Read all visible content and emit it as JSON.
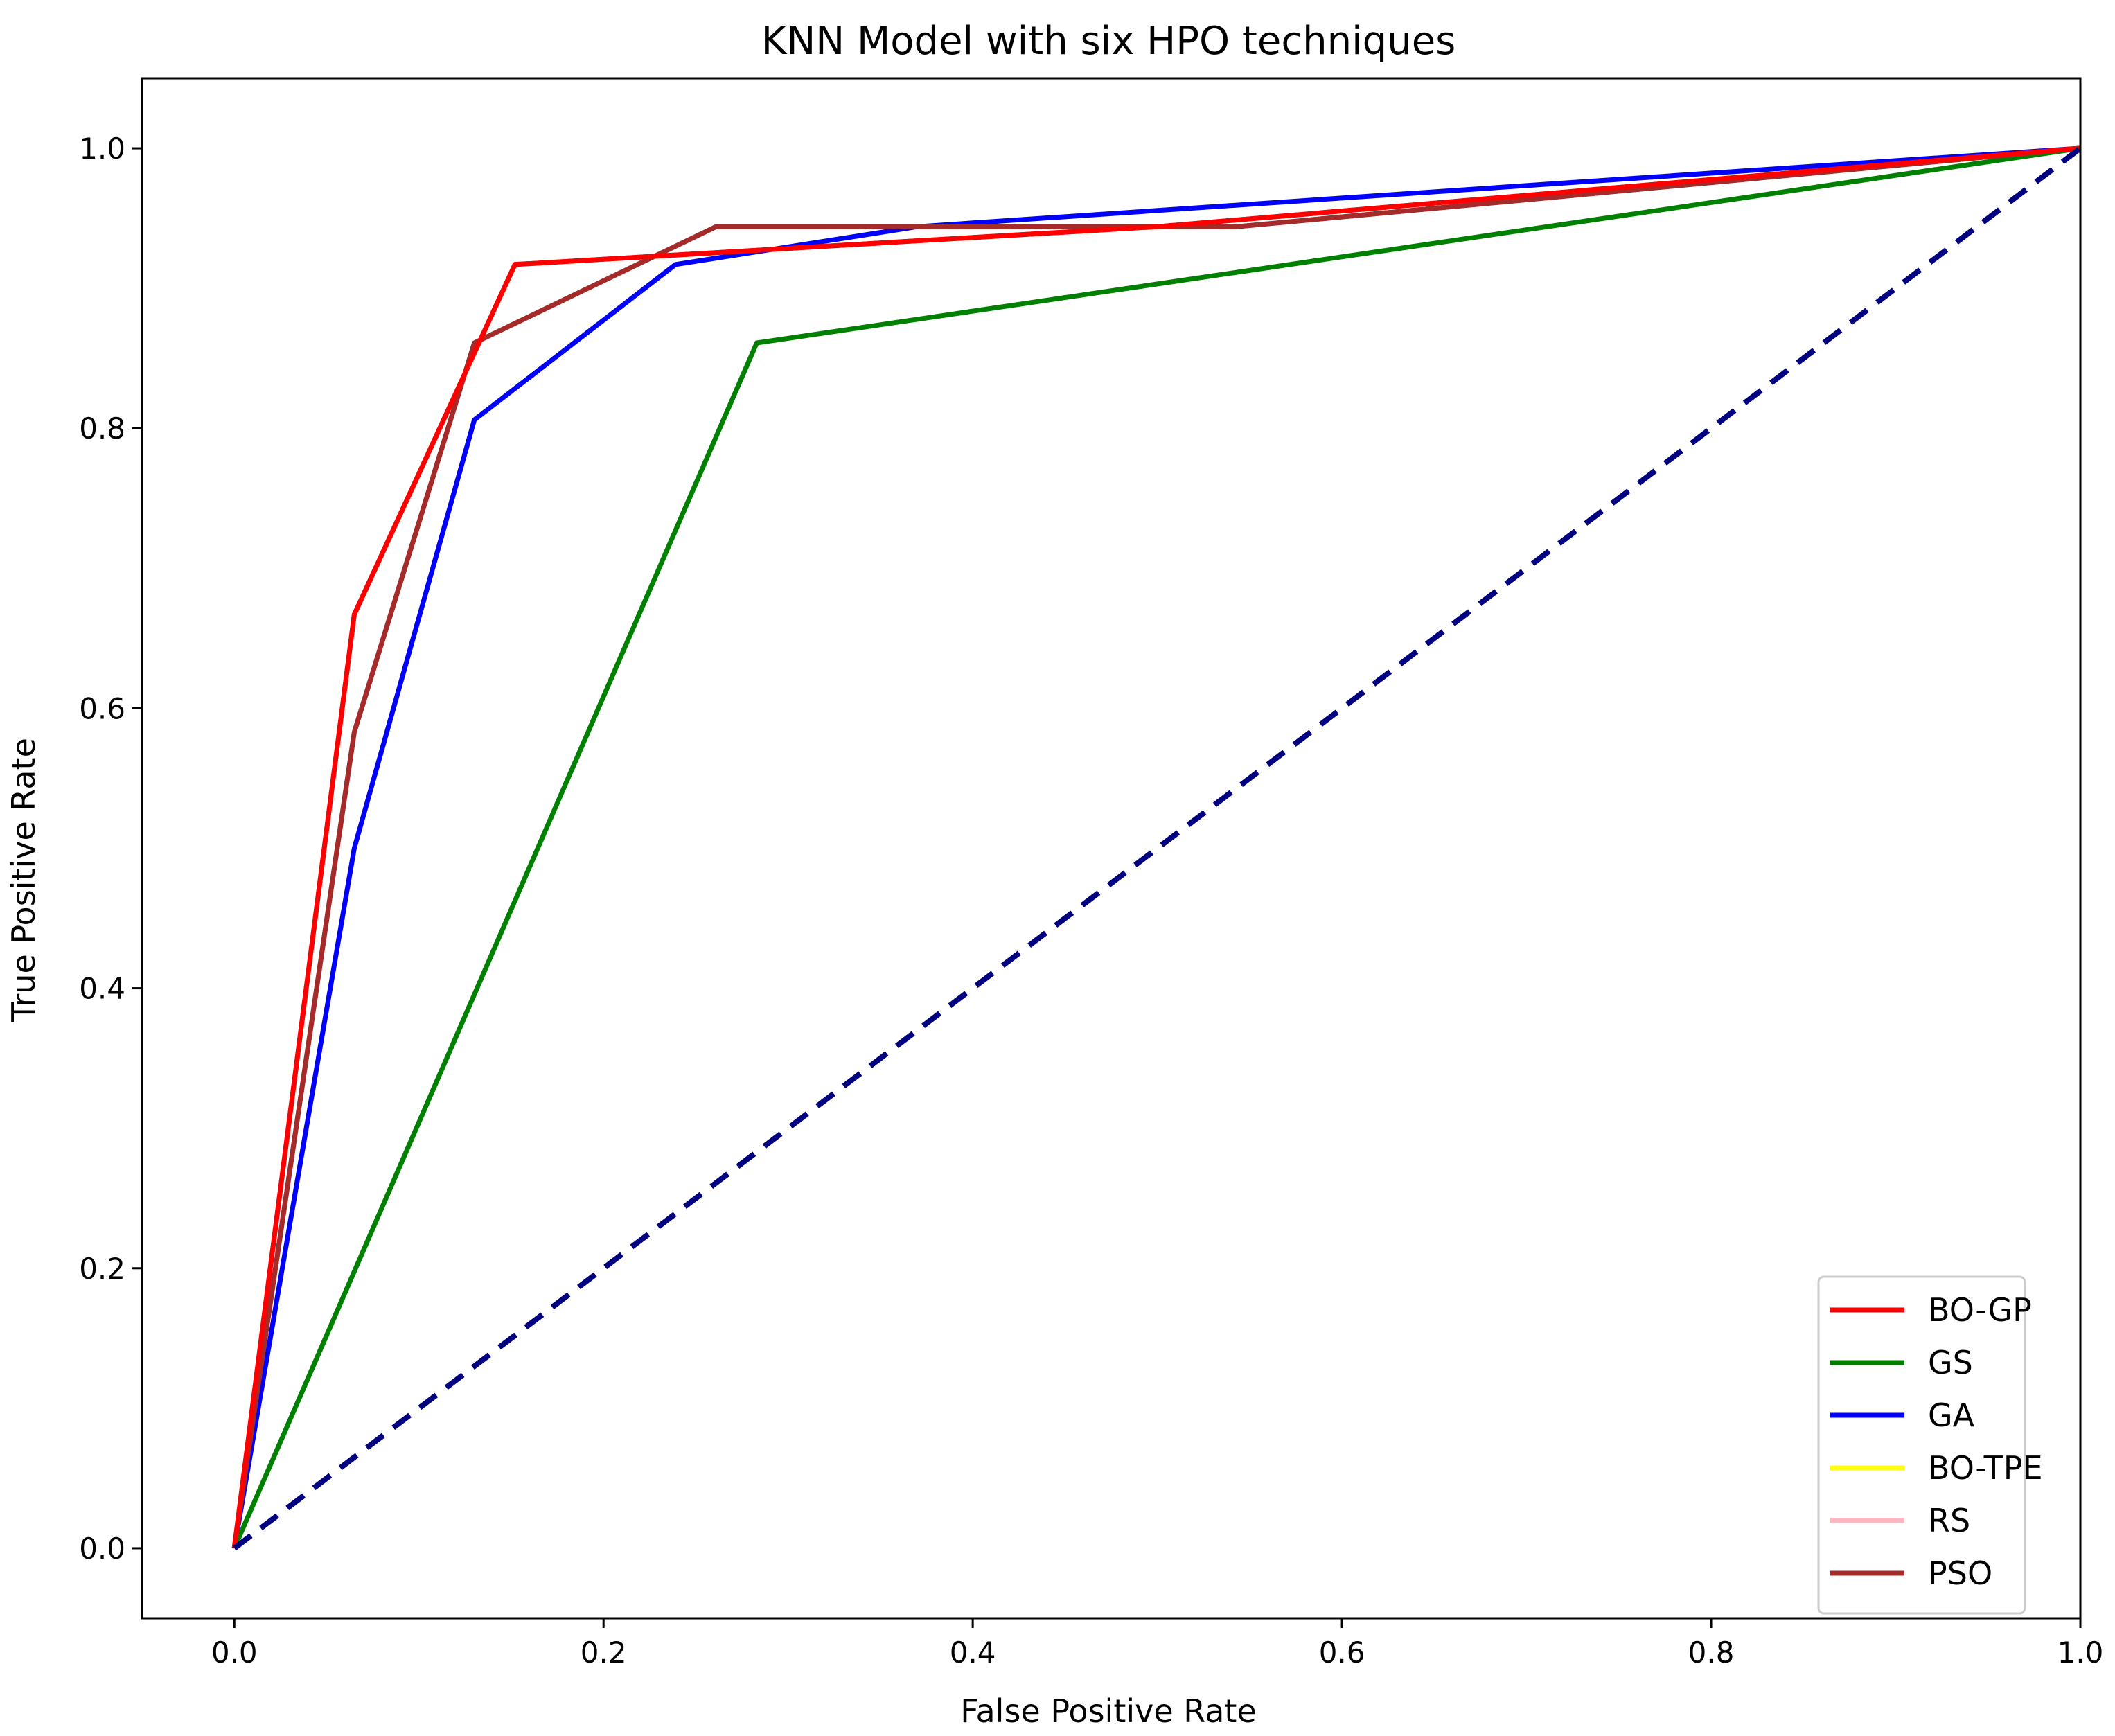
{
  "chart_data": {
    "type": "line",
    "title": "KNN Model with six HPO techniques",
    "xlabel": "False Positive Rate",
    "ylabel": "True Positive Rate",
    "xlim": [
      -0.05,
      1.0
    ],
    "ylim": [
      -0.05,
      1.05
    ],
    "xticks": [
      "0.0",
      "0.2",
      "0.4",
      "0.6",
      "0.8",
      "1.0"
    ],
    "yticks": [
      "0.0",
      "0.2",
      "0.4",
      "0.6",
      "0.8",
      "1.0"
    ],
    "legend_position": "bottom-right",
    "grid": false,
    "series": [
      {
        "name": "BO-GP",
        "color": "#ff0000",
        "x": [
          0.0,
          0.065,
          0.152,
          0.5,
          1.0
        ],
        "y": [
          0.0,
          0.667,
          0.917,
          0.944,
          1.0
        ]
      },
      {
        "name": "GS",
        "color": "#008000",
        "x": [
          0.0,
          0.283,
          1.0
        ],
        "y": [
          0.0,
          0.861,
          1.0
        ]
      },
      {
        "name": "GA",
        "color": "#0000ff",
        "x": [
          0.0,
          0.065,
          0.13,
          0.239,
          0.37,
          1.0
        ],
        "y": [
          0.0,
          0.5,
          0.806,
          0.917,
          0.944,
          1.0
        ]
      },
      {
        "name": "BO-TPE",
        "color": "#ffff00",
        "x": [
          0.0,
          0.065,
          0.13,
          0.239,
          0.37,
          1.0
        ],
        "y": [
          0.0,
          0.5,
          0.806,
          0.917,
          0.944,
          1.0
        ]
      },
      {
        "name": "RS",
        "color": "#ffb6c1",
        "x": [
          0.0,
          0.065,
          0.13,
          0.239,
          0.37,
          1.0
        ],
        "y": [
          0.0,
          0.5,
          0.806,
          0.917,
          0.944,
          1.0
        ]
      },
      {
        "name": "PSO",
        "color": "#a52a2a",
        "x": [
          0.0,
          0.065,
          0.13,
          0.261,
          0.543,
          1.0
        ],
        "y": [
          0.0,
          0.583,
          0.861,
          0.944,
          0.944,
          1.0
        ]
      }
    ],
    "reference_line": {
      "color": "#000080",
      "style": "dashed",
      "x": [
        0.0,
        1.0
      ],
      "y": [
        0.0,
        1.0
      ]
    }
  }
}
